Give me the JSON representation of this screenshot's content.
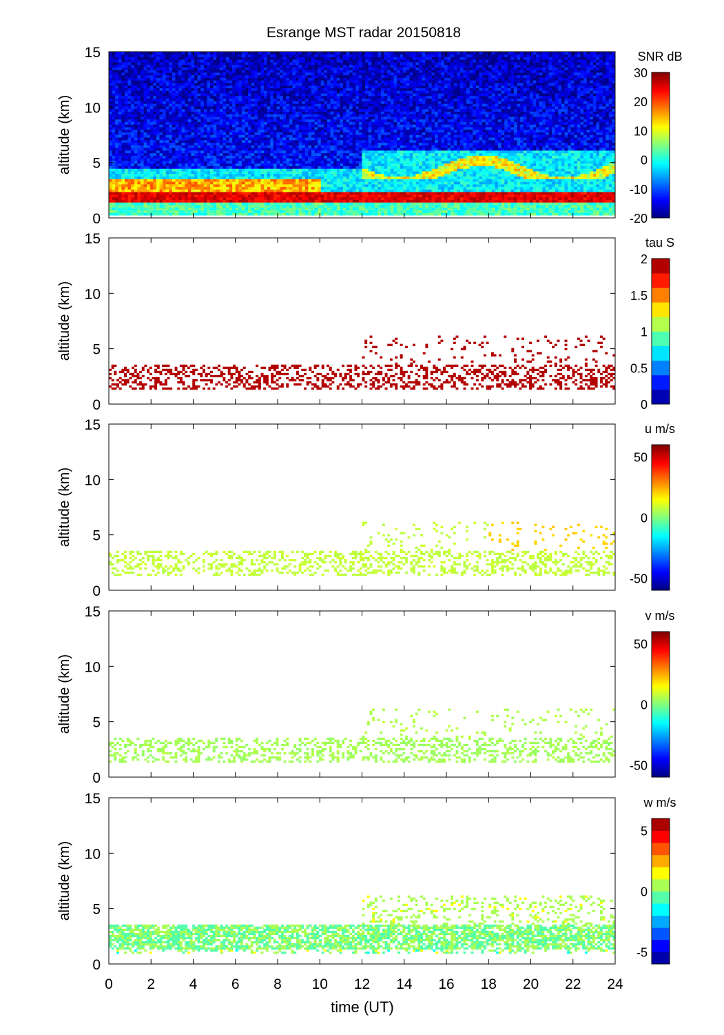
{
  "chart_data": {
    "type": "heatmap",
    "title": "Esrange MST radar 20150818",
    "xlabel": "time (UT)",
    "xlim": [
      0,
      24
    ],
    "xticks": [
      0,
      2,
      4,
      6,
      8,
      10,
      12,
      14,
      16,
      18,
      20,
      22,
      24
    ],
    "grid": false,
    "panels": [
      {
        "id": "snr",
        "ylabel": "altitude (km)",
        "ylim": [
          0,
          15
        ],
        "yticks": [
          0,
          5,
          10,
          15
        ],
        "colorbar": {
          "label": "SNR dB",
          "range": [
            -20,
            30
          ],
          "ticks": [
            30,
            20,
            10,
            0,
            -10,
            -20
          ],
          "levels": 64
        },
        "features": [
          {
            "desc": "background",
            "alt_km": [
              0,
              15
            ],
            "time_h": [
              0,
              24
            ],
            "value": -12
          },
          {
            "desc": "strong layer",
            "alt_km": [
              1.5,
              2.3
            ],
            "time_h": [
              0,
              24
            ],
            "value": 25
          },
          {
            "desc": "upper layer",
            "alt_km": [
              2.5,
              3.3
            ],
            "time_h": [
              0,
              10
            ],
            "value": 15
          },
          {
            "desc": "elevated layers",
            "alt_km": [
              3.5,
              6
            ],
            "time_h": [
              12,
              24
            ],
            "value": 8
          }
        ]
      },
      {
        "id": "tau",
        "ylabel": "altitude (km)",
        "ylim": [
          0,
          15
        ],
        "yticks": [
          0,
          5,
          10,
          15
        ],
        "colorbar": {
          "label": "tau S",
          "range": [
            0,
            2
          ],
          "ticks": [
            2,
            1.5,
            1,
            0.5,
            0
          ],
          "levels": 10
        },
        "features": [
          {
            "desc": "sparse echoes",
            "alt_km": [
              1.5,
              3.5
            ],
            "time_h": [
              0,
              24
            ],
            "value": 1.95
          }
        ]
      },
      {
        "id": "u",
        "ylabel": "altitude (km)",
        "ylim": [
          0,
          15
        ],
        "yticks": [
          0,
          5,
          10,
          15
        ],
        "colorbar": {
          "label": "u m/s",
          "range": [
            -60,
            60
          ],
          "ticks": [
            50,
            0,
            -50
          ],
          "levels": 64
        },
        "features": [
          {
            "desc": "sparse echoes",
            "alt_km": [
              1.5,
              3.5
            ],
            "time_h": [
              0,
              24
            ],
            "value": 5
          },
          {
            "desc": "upper echoes",
            "alt_km": [
              3.5,
              5.5
            ],
            "time_h": [
              18,
              24
            ],
            "value": 18
          }
        ]
      },
      {
        "id": "v",
        "ylabel": "altitude (km)",
        "ylim": [
          0,
          15
        ],
        "yticks": [
          0,
          5,
          10,
          15
        ],
        "colorbar": {
          "label": "v m/s",
          "range": [
            -60,
            60
          ],
          "ticks": [
            50,
            0,
            -50
          ],
          "levels": 64
        },
        "features": [
          {
            "desc": "sparse echoes",
            "alt_km": [
              1.5,
              3.5
            ],
            "time_h": [
              0,
              24
            ],
            "value": 3
          }
        ]
      },
      {
        "id": "w",
        "ylabel": "altitude (km)",
        "ylim": [
          0,
          15
        ],
        "yticks": [
          0,
          5,
          10,
          15
        ],
        "colorbar": {
          "label": "w m/s",
          "range": [
            -6,
            6
          ],
          "ticks": [
            5,
            0,
            -5
          ],
          "levels": 12
        },
        "features": [
          {
            "desc": "dense echoes",
            "alt_km": [
              1,
              3.5
            ],
            "time_h": [
              0,
              24
            ],
            "value": -0.5
          },
          {
            "desc": "upper echoes",
            "alt_km": [
              3.5,
              6.2
            ],
            "time_h": [
              12,
              24
            ],
            "value": 0.3
          }
        ]
      }
    ]
  }
}
